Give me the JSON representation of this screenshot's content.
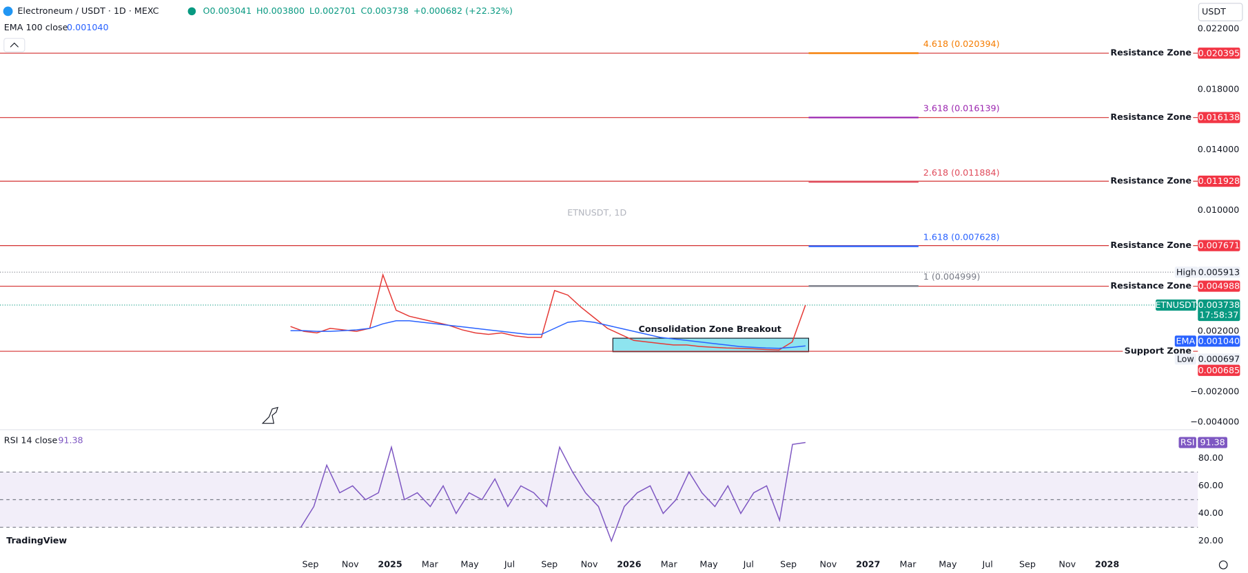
{
  "header": {
    "symbol": "Electroneum / USDT · 1D · MEXC",
    "ohlc": [
      "O0.003041",
      "H0.003800",
      "L0.002701",
      "C0.003738",
      "+0.000682 (+22.32%)"
    ],
    "ema_label": "EMA 100 close",
    "ema_value": "0.001040",
    "currency": "USDT"
  },
  "watermark": "ETNUSDT, 1D",
  "logo": "TradingView",
  "chart_data": [
    {
      "type": "line",
      "x_axis_labels": [
        "Sep",
        "Nov",
        "2025",
        "Mar",
        "May",
        "Jul",
        "Sep",
        "Nov",
        "2026",
        "Mar",
        "May",
        "Jul",
        "Sep",
        "Nov",
        "2027",
        "Mar",
        "May",
        "Jul",
        "Sep",
        "Nov",
        "2028"
      ],
      "series": [
        {
          "name": "ETNUSDT",
          "color": "#e53935",
          "values": [
            0.00232,
            0.002,
            0.0019,
            0.0022,
            0.0021,
            0.002,
            0.0022,
            0.00574,
            0.0034,
            0.003,
            0.0028,
            0.0026,
            0.0024,
            0.0021,
            0.0019,
            0.0018,
            0.0019,
            0.0017,
            0.0016,
            0.0016,
            0.0047,
            0.0044,
            0.0036,
            0.0029,
            0.0022,
            0.0018,
            0.0014,
            0.0013,
            0.0012,
            0.0011,
            0.0011,
            0.001,
            0.00095,
            0.0009,
            0.00088,
            0.00085,
            0.0008,
            0.00077,
            0.0013,
            0.003738
          ]
        },
        {
          "name": "EMA",
          "color": "#2962ff",
          "values": [
            0.00205,
            0.00205,
            0.002,
            0.002,
            0.00205,
            0.0021,
            0.0022,
            0.0025,
            0.0027,
            0.0027,
            0.0026,
            0.0025,
            0.0024,
            0.0023,
            0.0022,
            0.0021,
            0.002,
            0.0019,
            0.0018,
            0.0018,
            0.0022,
            0.0026,
            0.0027,
            0.0026,
            0.0024,
            0.0022,
            0.002,
            0.0018,
            0.0016,
            0.0015,
            0.0014,
            0.0013,
            0.0012,
            0.0011,
            0.001,
            0.00095,
            0.0009,
            0.00088,
            0.00095,
            0.00104
          ]
        }
      ],
      "ylim": [
        -0.0045,
        0.0239
      ],
      "yticks": [
        {
          "value": 0.022,
          "label": "0.022000"
        },
        {
          "value": 0.018,
          "label": "0.018000"
        },
        {
          "value": 0.014,
          "label": "0.014000"
        },
        {
          "value": 0.01,
          "label": "0.010000"
        },
        {
          "value": 0.002,
          "label": "0.002000"
        },
        {
          "value": -0.002,
          "label": "−0.002000"
        },
        {
          "value": -0.004,
          "label": "−0.004000"
        }
      ],
      "zones": [
        {
          "name": "Resistance Zone",
          "value": 0.020395,
          "label": "0.020395"
        },
        {
          "name": "Resistance Zone",
          "value": 0.016138,
          "label": "0.016138"
        },
        {
          "name": "Resistance Zone",
          "value": 0.011928,
          "label": "0.011928"
        },
        {
          "name": "Resistance Zone",
          "value": 0.007671,
          "label": "0.007671"
        },
        {
          "name": "Resistance Zone",
          "value": 0.004988,
          "label": "0.004988"
        },
        {
          "name": "Support Zone",
          "value": 0.000685,
          "label": "0.000685"
        }
      ],
      "fib": [
        {
          "value": 0.020394,
          "label": "4.618 (0.020394)",
          "color": "#f57c00"
        },
        {
          "value": 0.016139,
          "label": "3.618 (0.016139)",
          "color": "#9c27b0"
        },
        {
          "value": 0.011884,
          "label": "2.618 (0.011884)",
          "color": "#e04b5b"
        },
        {
          "value": 0.007628,
          "label": "1.618 (0.007628)",
          "color": "#2962ff"
        },
        {
          "value": 0.004999,
          "label": "1 (0.004999)",
          "color": "#787b86"
        }
      ],
      "price_label": {
        "name": "ETNUSDT",
        "value": 0.003738,
        "label": "0.003738",
        "countdown": "17:58:37"
      },
      "high": {
        "name": "High",
        "value": 0.005913,
        "label": "0.005913"
      },
      "low": {
        "name": "Low",
        "value": 0.000697,
        "label": "0.000697"
      },
      "ema": {
        "name": "EMA",
        "value": 0.00104,
        "label": "0.001040"
      },
      "annotation": "Consolidation Zone Breakout"
    },
    {
      "type": "line",
      "title": "RSI 14 close",
      "last_label": "91.38",
      "badge": "RSI",
      "series": [
        {
          "name": "RSI",
          "color": "#7e57c2",
          "values": [
            30,
            45,
            75,
            55,
            60,
            50,
            55,
            88,
            50,
            55,
            45,
            60,
            40,
            55,
            50,
            65,
            45,
            60,
            55,
            45,
            88,
            70,
            55,
            45,
            20,
            45,
            55,
            60,
            40,
            50,
            70,
            55,
            45,
            60,
            40,
            55,
            60,
            35,
            90,
            91.38
          ]
        }
      ],
      "ylim": [
        8.5,
        97.8
      ],
      "yticks": [
        {
          "value": 80,
          "label": "80.00"
        },
        {
          "value": 60,
          "label": "60.00"
        },
        {
          "value": 40,
          "label": "40.00"
        },
        {
          "value": 20,
          "label": "20.00"
        }
      ],
      "bands": [
        70,
        50,
        30
      ]
    }
  ]
}
